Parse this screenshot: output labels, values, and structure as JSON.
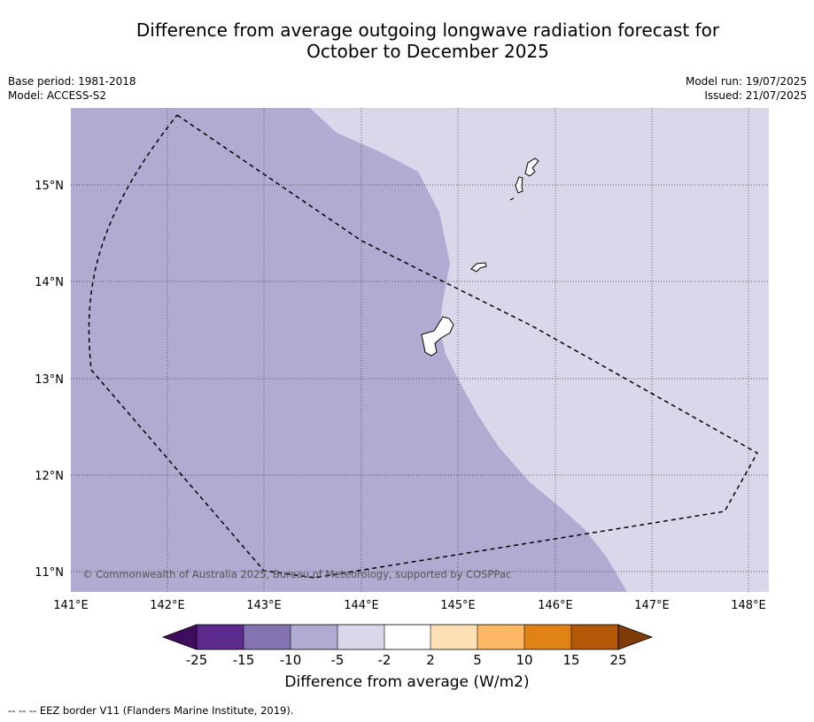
{
  "title_line1": "Difference from average outgoing longwave radiation forecast for",
  "title_line2": "October to December 2025",
  "meta_left": {
    "base_period": "Base period: 1981-2018",
    "model": "Model: ACCESS-S2"
  },
  "meta_right": {
    "model_run": "Model run: 19/07/2025",
    "issued": "Issued: 21/07/2025"
  },
  "map": {
    "lon_ticks": [
      "141°E",
      "142°E",
      "143°E",
      "144°E",
      "145°E",
      "146°E",
      "147°E",
      "148°E"
    ],
    "lat_ticks": [
      "15°N",
      "14°N",
      "13°N",
      "12°N",
      "11°N"
    ],
    "copyright": "© Commonwealth of Australia 2025, Bureau of Meteorology, supported by COSPPac",
    "region_colors": {
      "minus10_to_minus5": "#b1abd2",
      "minus5_to_minus2": "#d8d8ea"
    }
  },
  "colorbar": {
    "labels": [
      "-25",
      "-15",
      "-10",
      "-5",
      "-2",
      "2",
      "5",
      "10",
      "15",
      "25"
    ],
    "colors": [
      "#3f0d5e",
      "#5b2a8c",
      "#8373b0",
      "#b1abd2",
      "#d8d8ea",
      "#ffffff",
      "#fde0b4",
      "#fdb863",
      "#e08214",
      "#b35806",
      "#7f3b08"
    ],
    "title": "Difference from average (W/m2)"
  },
  "footnote": "--  --  -- EEZ border V11 (Flanders Marine Institute, 2019)."
}
